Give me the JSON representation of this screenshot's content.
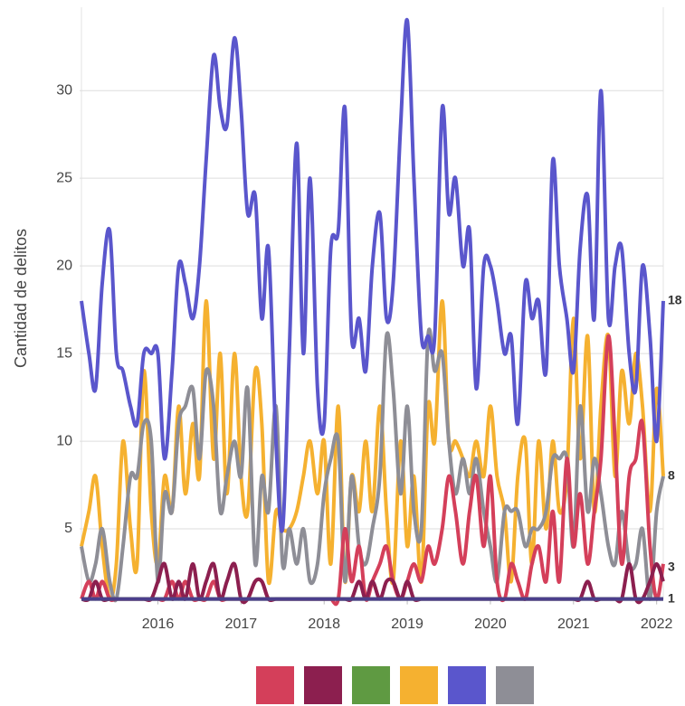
{
  "chart_data": {
    "type": "line",
    "y_label": "Cantidad de delitos",
    "x": [
      2015.08,
      2015.17,
      2015.25,
      2015.33,
      2015.42,
      2015.5,
      2015.58,
      2015.67,
      2015.75,
      2015.83,
      2015.92,
      2016.0,
      2016.08,
      2016.17,
      2016.25,
      2016.33,
      2016.42,
      2016.5,
      2016.58,
      2016.67,
      2016.75,
      2016.83,
      2016.92,
      2017.0,
      2017.08,
      2017.17,
      2017.25,
      2017.33,
      2017.42,
      2017.5,
      2017.58,
      2017.67,
      2017.75,
      2017.83,
      2017.92,
      2018.0,
      2018.08,
      2018.17,
      2018.25,
      2018.33,
      2018.42,
      2018.5,
      2018.58,
      2018.67,
      2018.75,
      2018.83,
      2018.92,
      2019.0,
      2019.08,
      2019.17,
      2019.25,
      2019.33,
      2019.42,
      2019.5,
      2019.58,
      2019.67,
      2019.75,
      2019.83,
      2019.92,
      2020.0,
      2020.08,
      2020.17,
      2020.25,
      2020.33,
      2020.42,
      2020.5,
      2020.58,
      2020.67,
      2020.75,
      2020.83,
      2020.92,
      2021.0,
      2021.08,
      2021.17,
      2021.25,
      2021.33,
      2021.42,
      2021.5,
      2021.58,
      2021.67,
      2021.75,
      2021.83,
      2021.92,
      2022.0,
      2022.08
    ],
    "xlim": [
      2015.08,
      2022.08
    ],
    "xticks": [
      2016,
      2017,
      2018,
      2019,
      2020,
      2021,
      2022
    ],
    "ylim": [
      1,
      34.6
    ],
    "yticks": [
      5,
      10,
      15,
      20,
      25,
      30
    ],
    "grid": true,
    "axis_color": "#4b3f8c",
    "series": [
      {
        "color": "#d43f5a",
        "values": [
          1,
          2,
          1,
          2,
          1,
          1,
          1,
          1,
          1,
          1,
          1,
          1,
          1,
          2,
          1,
          2,
          1,
          1,
          1,
          2,
          1,
          1,
          1,
          1,
          1,
          2,
          2,
          1,
          1,
          1,
          1,
          1,
          1,
          1,
          1,
          1,
          1,
          1,
          5,
          2,
          4,
          1,
          2,
          3,
          4,
          2,
          1,
          2,
          3,
          2,
          4,
          3,
          5,
          8,
          6,
          3,
          6,
          8,
          4,
          8,
          2,
          1,
          3,
          2,
          1,
          3,
          4,
          2,
          6,
          2,
          9,
          4,
          7,
          3,
          6,
          9,
          16,
          10,
          3,
          8,
          9,
          11,
          4,
          1,
          3
        ]
      },
      {
        "color": "#8c1f4f",
        "values": [
          1,
          1,
          2,
          1,
          1,
          1,
          1,
          1,
          1,
          1,
          1,
          2,
          3,
          1,
          2,
          1,
          3,
          1,
          2,
          3,
          1,
          2,
          3,
          1,
          1,
          2,
          2,
          1,
          1,
          1,
          1,
          1,
          1,
          1,
          1,
          1,
          1,
          1,
          1,
          1,
          2,
          1,
          2,
          1,
          2,
          2,
          1,
          2,
          1,
          1,
          1,
          1,
          1,
          1,
          1,
          1,
          1,
          1,
          1,
          1,
          1,
          1,
          1,
          1,
          1,
          1,
          1,
          1,
          1,
          1,
          1,
          1,
          1,
          2,
          1,
          1,
          1,
          1,
          1,
          3,
          1,
          1,
          2,
          3,
          2
        ]
      },
      {
        "color": "#5f9a42",
        "values": [
          1,
          1,
          1,
          1,
          1,
          1,
          1,
          1,
          1,
          1,
          1,
          1,
          1,
          1,
          1,
          1,
          1,
          1,
          1,
          1,
          1,
          1,
          1,
          1,
          1,
          1,
          1,
          1,
          1,
          1,
          1,
          1,
          1,
          1,
          1,
          1,
          1,
          1,
          1,
          1,
          1,
          1,
          1,
          1,
          1,
          1,
          1,
          1,
          1,
          1,
          1,
          1,
          1,
          1,
          1,
          1,
          1,
          1,
          1,
          1,
          1,
          1,
          1,
          1,
          1,
          1,
          1,
          1,
          1,
          1,
          1,
          1,
          1,
          1,
          1,
          1,
          1,
          1,
          1,
          1,
          1,
          1,
          1,
          1,
          1
        ]
      },
      {
        "color": "#f5b130",
        "values": [
          4,
          6,
          8,
          4,
          1,
          3,
          10,
          5,
          3,
          14,
          6,
          3,
          8,
          6,
          12,
          7,
          11,
          8,
          18,
          9,
          15,
          7,
          15,
          8,
          6,
          14,
          11,
          2,
          6,
          5,
          5,
          6,
          8,
          10,
          7,
          10,
          3,
          12,
          2,
          8,
          6,
          10,
          6,
          12,
          6,
          2,
          10,
          4,
          8,
          2,
          12,
          10,
          18,
          10,
          10,
          9,
          8,
          10,
          8,
          12,
          8,
          6,
          2,
          8,
          10,
          3,
          10,
          5,
          10,
          6,
          8,
          17,
          9,
          16,
          6,
          12,
          16,
          8,
          14,
          11,
          15,
          12,
          6,
          13,
          8
        ]
      },
      {
        "color": "#5a56cc",
        "values": [
          18,
          15,
          13,
          19,
          22,
          15,
          14,
          12,
          11,
          15,
          15,
          15,
          9,
          14,
          20,
          19,
          17,
          20,
          26,
          32,
          29,
          28,
          33,
          29,
          23,
          24,
          17,
          21,
          10,
          5,
          15,
          27,
          15,
          25,
          13,
          11,
          21,
          22,
          29,
          16,
          17,
          14,
          20,
          23,
          17,
          19,
          28,
          34,
          25,
          16,
          16,
          16,
          29,
          23,
          25,
          20,
          22,
          13,
          20,
          20,
          18,
          15,
          16,
          11,
          19,
          17,
          18,
          14,
          26,
          20,
          17,
          14,
          21,
          24,
          17,
          30,
          17,
          20,
          21,
          15,
          13,
          20,
          16,
          10,
          18
        ]
      },
      {
        "color": "#8e8e96",
        "values": [
          4,
          2,
          3,
          5,
          2,
          1,
          4,
          8,
          8,
          11,
          10,
          2,
          7,
          6,
          11,
          12,
          13,
          9,
          14,
          12,
          6,
          8,
          10,
          8,
          13,
          3,
          8,
          6,
          12,
          3,
          5,
          3,
          5,
          2,
          3,
          7,
          9,
          10,
          2,
          8,
          4,
          3,
          5,
          8,
          16,
          13,
          7,
          12,
          6,
          5,
          16,
          14,
          15,
          10,
          7,
          9,
          7,
          9,
          6,
          4,
          2,
          6,
          6,
          6,
          4,
          5,
          5,
          6,
          9,
          9,
          9,
          4,
          12,
          6,
          9,
          7,
          4,
          3,
          6,
          3,
          3,
          5,
          1,
          6,
          8
        ]
      }
    ]
  }
}
